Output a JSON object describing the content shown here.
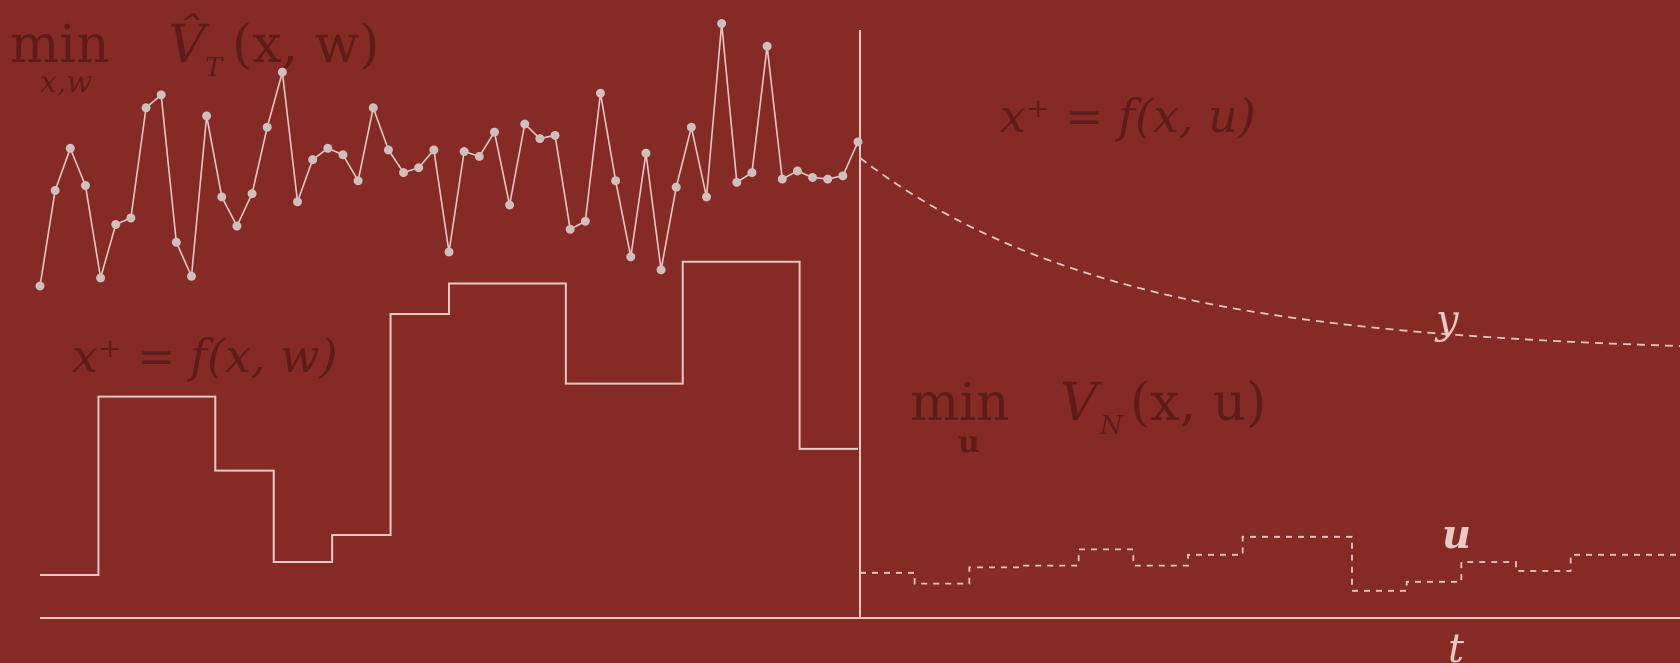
{
  "labels": {
    "estimation_min": "min",
    "estimation_sub": "x,w",
    "estimation_obj": "V̂",
    "estimation_obj_sub": "T",
    "estimation_args": "(x, w)",
    "estimation_model": "x⁺ = f(x, w)",
    "control_min": "min",
    "control_sub": "u",
    "control_obj": "V",
    "control_obj_sub": "N",
    "control_args": "(x, u)",
    "control_model": "x⁺ = f(x, u)",
    "y_label": "y",
    "u_label": "u",
    "t_label": "t"
  },
  "colors": {
    "background": "#862a26",
    "dark_text": "#5e1c19",
    "light": "#e8c9c4",
    "marker": "#cfc0bc"
  },
  "chart_data": {
    "type": "line",
    "series": [
      {
        "role": "measurements",
        "values": [
          0.0,
          0.59,
          0.85,
          0.62,
          0.05,
          0.38,
          0.42,
          1.1,
          1.18,
          0.27,
          0.06,
          1.05,
          0.55,
          0.37,
          0.57,
          0.98,
          1.32,
          0.52,
          0.78,
          0.85,
          0.81,
          0.65,
          1.1,
          0.84,
          0.7,
          0.73,
          0.84,
          0.21,
          0.83,
          0.8,
          0.95,
          0.5,
          1.0,
          0.91,
          0.93,
          0.35,
          0.4,
          1.19,
          0.65,
          0.18,
          0.82,
          0.1,
          0.61,
          0.98,
          0.55,
          1.62,
          0.64,
          0.7,
          1.48,
          0.66,
          0.71,
          0.67,
          0.66,
          0.68,
          0.89
        ]
      },
      {
        "role": "past-input",
        "steps": [
          0.0,
          2.05,
          2.05,
          1.2,
          0.15,
          0.46,
          3.0,
          3.35,
          3.35,
          2.2,
          2.2,
          3.6,
          3.6,
          1.45
        ]
      },
      {
        "role": "predicted-state",
        "trend": "decaying"
      },
      {
        "role": "predicted-input",
        "steps": [
          0.7,
          0.4,
          0.85,
          0.9,
          1.35,
          0.9,
          1.2,
          1.7,
          1.7,
          0.2,
          0.45,
          1.0,
          0.75,
          1.2,
          1.2
        ]
      }
    ]
  }
}
